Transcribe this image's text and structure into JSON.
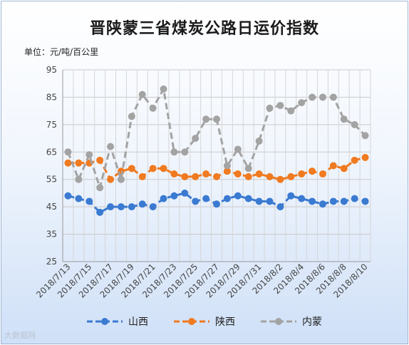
{
  "chart_data": {
    "type": "line",
    "title": "晋陕蒙三省煤炭公路日运价指数",
    "unit_label": "单位：元/吨/百公里",
    "ylim": [
      25,
      95
    ],
    "yticks": [
      25,
      35,
      45,
      55,
      65,
      75,
      85,
      95
    ],
    "grid": true,
    "legend_position": "bottom",
    "x": [
      "2018/7/13",
      "2018/7/14",
      "2018/7/15",
      "2018/7/16",
      "2018/7/17",
      "2018/7/18",
      "2018/7/19",
      "2018/7/20",
      "2018/7/21",
      "2018/7/22",
      "2018/7/23",
      "2018/7/24",
      "2018/7/25",
      "2018/7/26",
      "2018/7/27",
      "2018/7/28",
      "2018/7/29",
      "2018/7/30",
      "2018/7/31",
      "2018/8/1",
      "2018/8/2",
      "2018/8/3",
      "2018/8/4",
      "2018/8/5",
      "2018/8/6",
      "2018/8/7",
      "2018/8/8",
      "2018/8/9",
      "2018/8/10"
    ],
    "xtick_labels": [
      "2018/7/13",
      "2018/7/15",
      "2018/7/17",
      "2018/7/19",
      "2018/7/21",
      "2018/7/23",
      "2018/7/25",
      "2018/7/27",
      "2018/7/29",
      "2018/7/31",
      "2018/8/2",
      "2018/8/4",
      "2018/8/6",
      "2018/8/8",
      "2018/8/10"
    ],
    "series": [
      {
        "name": "山西",
        "color": "#3a7ad1",
        "values": [
          49,
          48,
          47,
          43,
          45,
          45,
          45,
          46,
          45,
          48,
          49,
          50,
          47,
          48,
          46,
          48,
          49,
          48,
          47,
          47,
          45,
          49,
          48,
          47,
          46,
          47,
          47,
          48,
          47
        ]
      },
      {
        "name": "陕西",
        "color": "#f07a20",
        "values": [
          61,
          61,
          61,
          62,
          55,
          58,
          59,
          56,
          59,
          59,
          57,
          56,
          56,
          57,
          56,
          58,
          57,
          56,
          57,
          56,
          55,
          56,
          57,
          58,
          57,
          60,
          59,
          62,
          63
        ]
      },
      {
        "name": "内蒙",
        "color": "#a3a3a3",
        "values": [
          65,
          55,
          64,
          52,
          67,
          55,
          78,
          86,
          81,
          88,
          65,
          65,
          70,
          77,
          77,
          60,
          66,
          59,
          69,
          81,
          82,
          80,
          83,
          85,
          85,
          85,
          77,
          75,
          71
        ]
      }
    ]
  },
  "watermark": "大数据网"
}
